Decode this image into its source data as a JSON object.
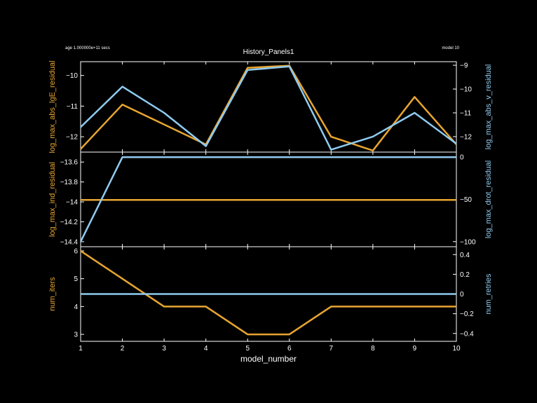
{
  "header": {
    "left": "age 1.000000e+11 secs",
    "center": "History_Panels1",
    "right": "model 10"
  },
  "colors": {
    "background": "#000000",
    "axes": "#ffffff",
    "orange": "#e7a531",
    "blue": "#8fcbf0"
  },
  "chart_data": [
    {
      "type": "line",
      "panel": "top",
      "x": [
        1,
        2,
        3,
        4,
        5,
        6,
        7,
        8,
        9,
        10
      ],
      "xlim": [
        1,
        10
      ],
      "series": [
        {
          "name": "log_max_abs_lgE_residual",
          "axis": "left",
          "color": "#e7a531",
          "values": [
            -12.4,
            -10.95,
            -11.6,
            -12.25,
            -9.75,
            -9.68,
            -12.0,
            -12.45,
            -10.7,
            -12.25
          ]
        },
        {
          "name": "log_max_abs_v_residual",
          "axis": "right",
          "color": "#8fcbf0",
          "values": [
            -11.6,
            -9.9,
            -11.0,
            -12.4,
            -9.2,
            -9.05,
            -12.55,
            -12.0,
            -11.0,
            -12.3
          ]
        }
      ],
      "left_axis": {
        "label": "log_max_abs_lgE_residual",
        "ylim": [
          -12.5,
          -9.55
        ],
        "ticks": [
          -12,
          -11,
          -10
        ],
        "tick_labels": [
          "−12",
          "−11",
          "−10"
        ]
      },
      "right_axis": {
        "label": "log_max_abs_v_residual",
        "ylim": [
          -12.65,
          -8.85
        ],
        "ticks": [
          -12,
          -11,
          -10,
          -9
        ],
        "tick_labels": [
          "−12",
          "−11",
          "−10",
          "−9"
        ]
      }
    },
    {
      "type": "line",
      "panel": "middle",
      "x": [
        1,
        2,
        3,
        4,
        5,
        6,
        7,
        8,
        9,
        10
      ],
      "xlim": [
        1,
        10
      ],
      "series": [
        {
          "name": "log_max_ind_residual",
          "axis": "left",
          "color": "#e7a531",
          "values": [
            -13.98,
            -13.98,
            -13.98,
            -13.98,
            -13.98,
            -13.98,
            -13.98,
            -13.98,
            -13.98,
            -13.98
          ]
        },
        {
          "name": "log_max_drot_residual",
          "axis": "right",
          "color": "#8fcbf0",
          "values": [
            -100,
            0,
            0,
            0,
            0,
            0,
            0,
            0,
            0,
            0
          ]
        }
      ],
      "left_axis": {
        "label": "log_max_ind_residual",
        "ylim": [
          -14.45,
          -13.5
        ],
        "ticks": [
          -14.4,
          -14.2,
          -14,
          -13.8,
          -13.6
        ],
        "tick_labels": [
          "−14.4",
          "−14.2",
          "−14",
          "−13.8",
          "−13.6"
        ]
      },
      "right_axis": {
        "label": "log_max_drot_residual",
        "ylim": [
          -106,
          6
        ],
        "ticks": [
          -100,
          -50,
          0
        ],
        "tick_labels": [
          "−100",
          "−50",
          "0"
        ]
      }
    },
    {
      "type": "line",
      "panel": "bottom",
      "x": [
        1,
        2,
        3,
        4,
        5,
        6,
        7,
        8,
        9,
        10
      ],
      "xlim": [
        1,
        10
      ],
      "xlabel": "model_number",
      "xticks": [
        1,
        2,
        3,
        4,
        5,
        6,
        7,
        8,
        9,
        10
      ],
      "series": [
        {
          "name": "num_iters",
          "axis": "left",
          "color": "#e7a531",
          "values": [
            6,
            5,
            4,
            4,
            3,
            3,
            4,
            4,
            4,
            4
          ]
        },
        {
          "name": "num_retries",
          "axis": "right",
          "color": "#8fcbf0",
          "values": [
            0,
            0,
            0,
            0,
            0,
            0,
            0,
            0,
            0,
            0
          ]
        }
      ],
      "left_axis": {
        "label": "num_iters",
        "ylim": [
          2.75,
          6.15
        ],
        "ticks": [
          3,
          4,
          5,
          6
        ],
        "tick_labels": [
          "3",
          "4",
          "5",
          "6"
        ]
      },
      "right_axis": {
        "label": "num_retries",
        "ylim": [
          -0.48,
          0.48
        ],
        "ticks": [
          -0.4,
          -0.2,
          0,
          0.2,
          0.4
        ],
        "tick_labels": [
          "−0.4",
          "−0.2",
          "0",
          "0.2",
          "0.4"
        ]
      }
    }
  ]
}
